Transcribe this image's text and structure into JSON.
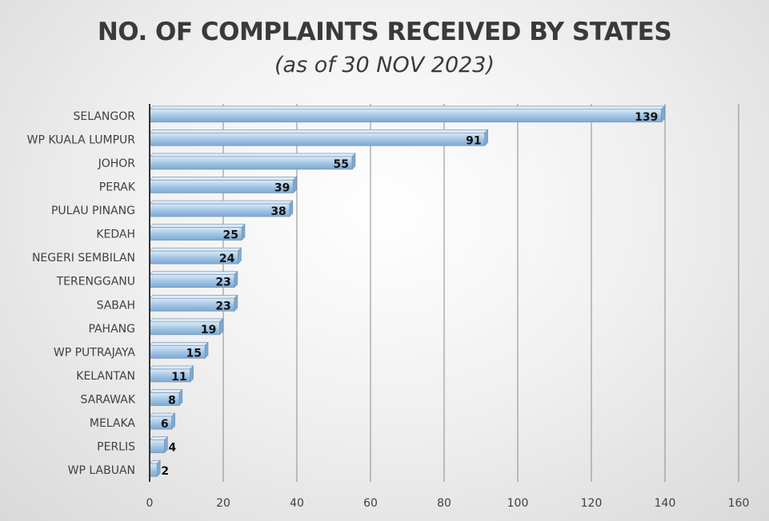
{
  "chart_data": {
    "type": "bar",
    "orientation": "horizontal",
    "title": "NO. OF COMPLAINTS RECEIVED BY STATES",
    "subtitle": "(as of 30 NOV 2023)",
    "categories": [
      "SELANGOR",
      "WP KUALA LUMPUR",
      "JOHOR",
      "PERAK",
      "PULAU PINANG",
      "KEDAH",
      "NEGERI SEMBILAN",
      "TERENGGANU",
      "SABAH",
      "PAHANG",
      "WP PUTRAJAYA",
      "KELANTAN",
      "SARAWAK",
      "MELAKA",
      "PERLIS",
      "WP LABUAN"
    ],
    "values": [
      139,
      91,
      55,
      39,
      38,
      25,
      24,
      23,
      23,
      19,
      15,
      11,
      8,
      6,
      4,
      2
    ],
    "xlim": [
      0,
      160
    ],
    "xticks": [
      0,
      20,
      40,
      60,
      80,
      100,
      120,
      140,
      160
    ],
    "grid": true,
    "legend": "none",
    "colors": {
      "bar_light": "#dbeaf7",
      "bar_mid": "#9fc3e4",
      "bar_dark": "#7ea9d1",
      "bar_edge": "#6f8fae",
      "gridline": "#8a8a8a",
      "axis": "#333333"
    }
  }
}
